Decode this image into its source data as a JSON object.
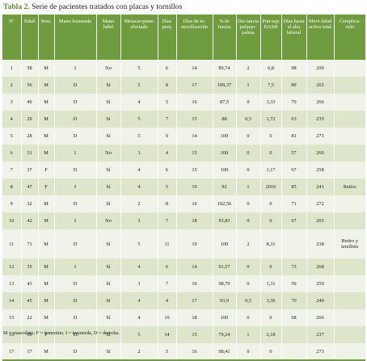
{
  "title": {
    "label": "Tabla 2.",
    "text": "Serie de pacientes tratados con placas y tornillos"
  },
  "columns": [
    "Nº",
    "Edad",
    "Sexo",
    "Mano lesionada",
    "Mano hábil",
    "Metacar-piano afectado",
    "Días preq",
    "Días de in-movilización",
    "% de fuerza",
    "Dis-tancia pulpejo-palma",
    "Pun-taje DASH",
    "Días hasta el alta laboral",
    "Movi-lidad activa total",
    "Complica-ción"
  ],
  "rows": [
    [
      "1",
      "58",
      "M",
      "I",
      "No",
      "5",
      "6",
      "14",
      "89,74",
      "2",
      "6,8",
      "98",
      "200",
      ""
    ],
    [
      "2",
      "56",
      "M",
      "D",
      "Sí",
      "5",
      "8",
      "17",
      "109,37",
      "1",
      "7,5",
      "89",
      "265",
      ""
    ],
    [
      "3",
      "49",
      "M",
      "D",
      "Sí",
      "4",
      "5",
      "16",
      "87,5",
      "0",
      "3,33",
      "79",
      "266",
      ""
    ],
    [
      "4",
      "29",
      "M",
      "D",
      "Sí",
      "5",
      "7",
      "15",
      "88",
      "0,5",
      "1,72",
      "63",
      "235",
      ""
    ],
    [
      "5",
      "28",
      "M",
      "D",
      "Sí",
      "5",
      "9",
      "14",
      "100",
      "0",
      "0",
      "81",
      "271",
      ""
    ],
    [
      "6",
      "31",
      "M",
      "I",
      "No",
      "3",
      "4",
      "15",
      "100",
      "0",
      "0",
      "57",
      "260",
      ""
    ],
    [
      "7",
      "37",
      "F",
      "D",
      "Sí",
      "4",
      "6",
      "15",
      "100",
      "0",
      "1,17",
      "67",
      "258",
      ""
    ],
    [
      "8",
      "47",
      "F",
      "I",
      "Sí",
      "4",
      "5",
      "19",
      "92",
      "1",
      "2016",
      "85",
      "241",
      "Retiro"
    ],
    [
      "9",
      "32",
      "M",
      "D",
      "Sí",
      "2",
      "8",
      "16",
      "102,56",
      "0",
      "0",
      "71",
      "272",
      ""
    ],
    [
      "10",
      "42",
      "M",
      "I",
      "No",
      "3",
      "7",
      "18",
      "93,83",
      "0",
      "0",
      "67",
      "265",
      ""
    ],
    [
      "11",
      "71",
      "M",
      "D",
      "Sí",
      "5",
      "11",
      "19",
      "100",
      "2",
      "8,31",
      "",
      "238",
      "Retiro y tenólisis"
    ],
    [
      "12",
      "35",
      "M",
      "I",
      "Sí",
      "4",
      "6",
      "14",
      "91,57",
      "0",
      "0",
      "73",
      "268",
      ""
    ],
    [
      "13",
      "43",
      "M",
      "D",
      "Sí",
      "3",
      "7",
      "16",
      "98,79",
      "0",
      "1,31",
      "59",
      "259",
      ""
    ],
    [
      "14",
      "45",
      "M",
      "D",
      "Sí",
      "4",
      "4",
      "17",
      "93,9",
      "0,5",
      "3,36",
      "70",
      "249",
      ""
    ],
    [
      "15",
      "22",
      "M",
      "D",
      "Sí",
      "4",
      "10",
      "18",
      "100",
      "0",
      "0",
      "68",
      "266",
      ""
    ],
    [
      "16",
      "69",
      "F",
      "D",
      "Sí",
      "5",
      "14",
      "15",
      "79,24",
      "1",
      "2,18",
      "",
      "237",
      ""
    ],
    [
      "17",
      "17",
      "M",
      "D",
      "Sí",
      "2",
      "5",
      "16",
      "98,41",
      "0",
      "0",
      "",
      "273",
      ""
    ]
  ],
  "footnote": "M = masculino, F = femenino, I = izquierda, D = derecha.",
  "colors": {
    "header_bg": "#6f9c3f",
    "row_light": "#f0f3e8",
    "row_dark": "#dde6cb",
    "title_accent": "#5a8a2e"
  }
}
